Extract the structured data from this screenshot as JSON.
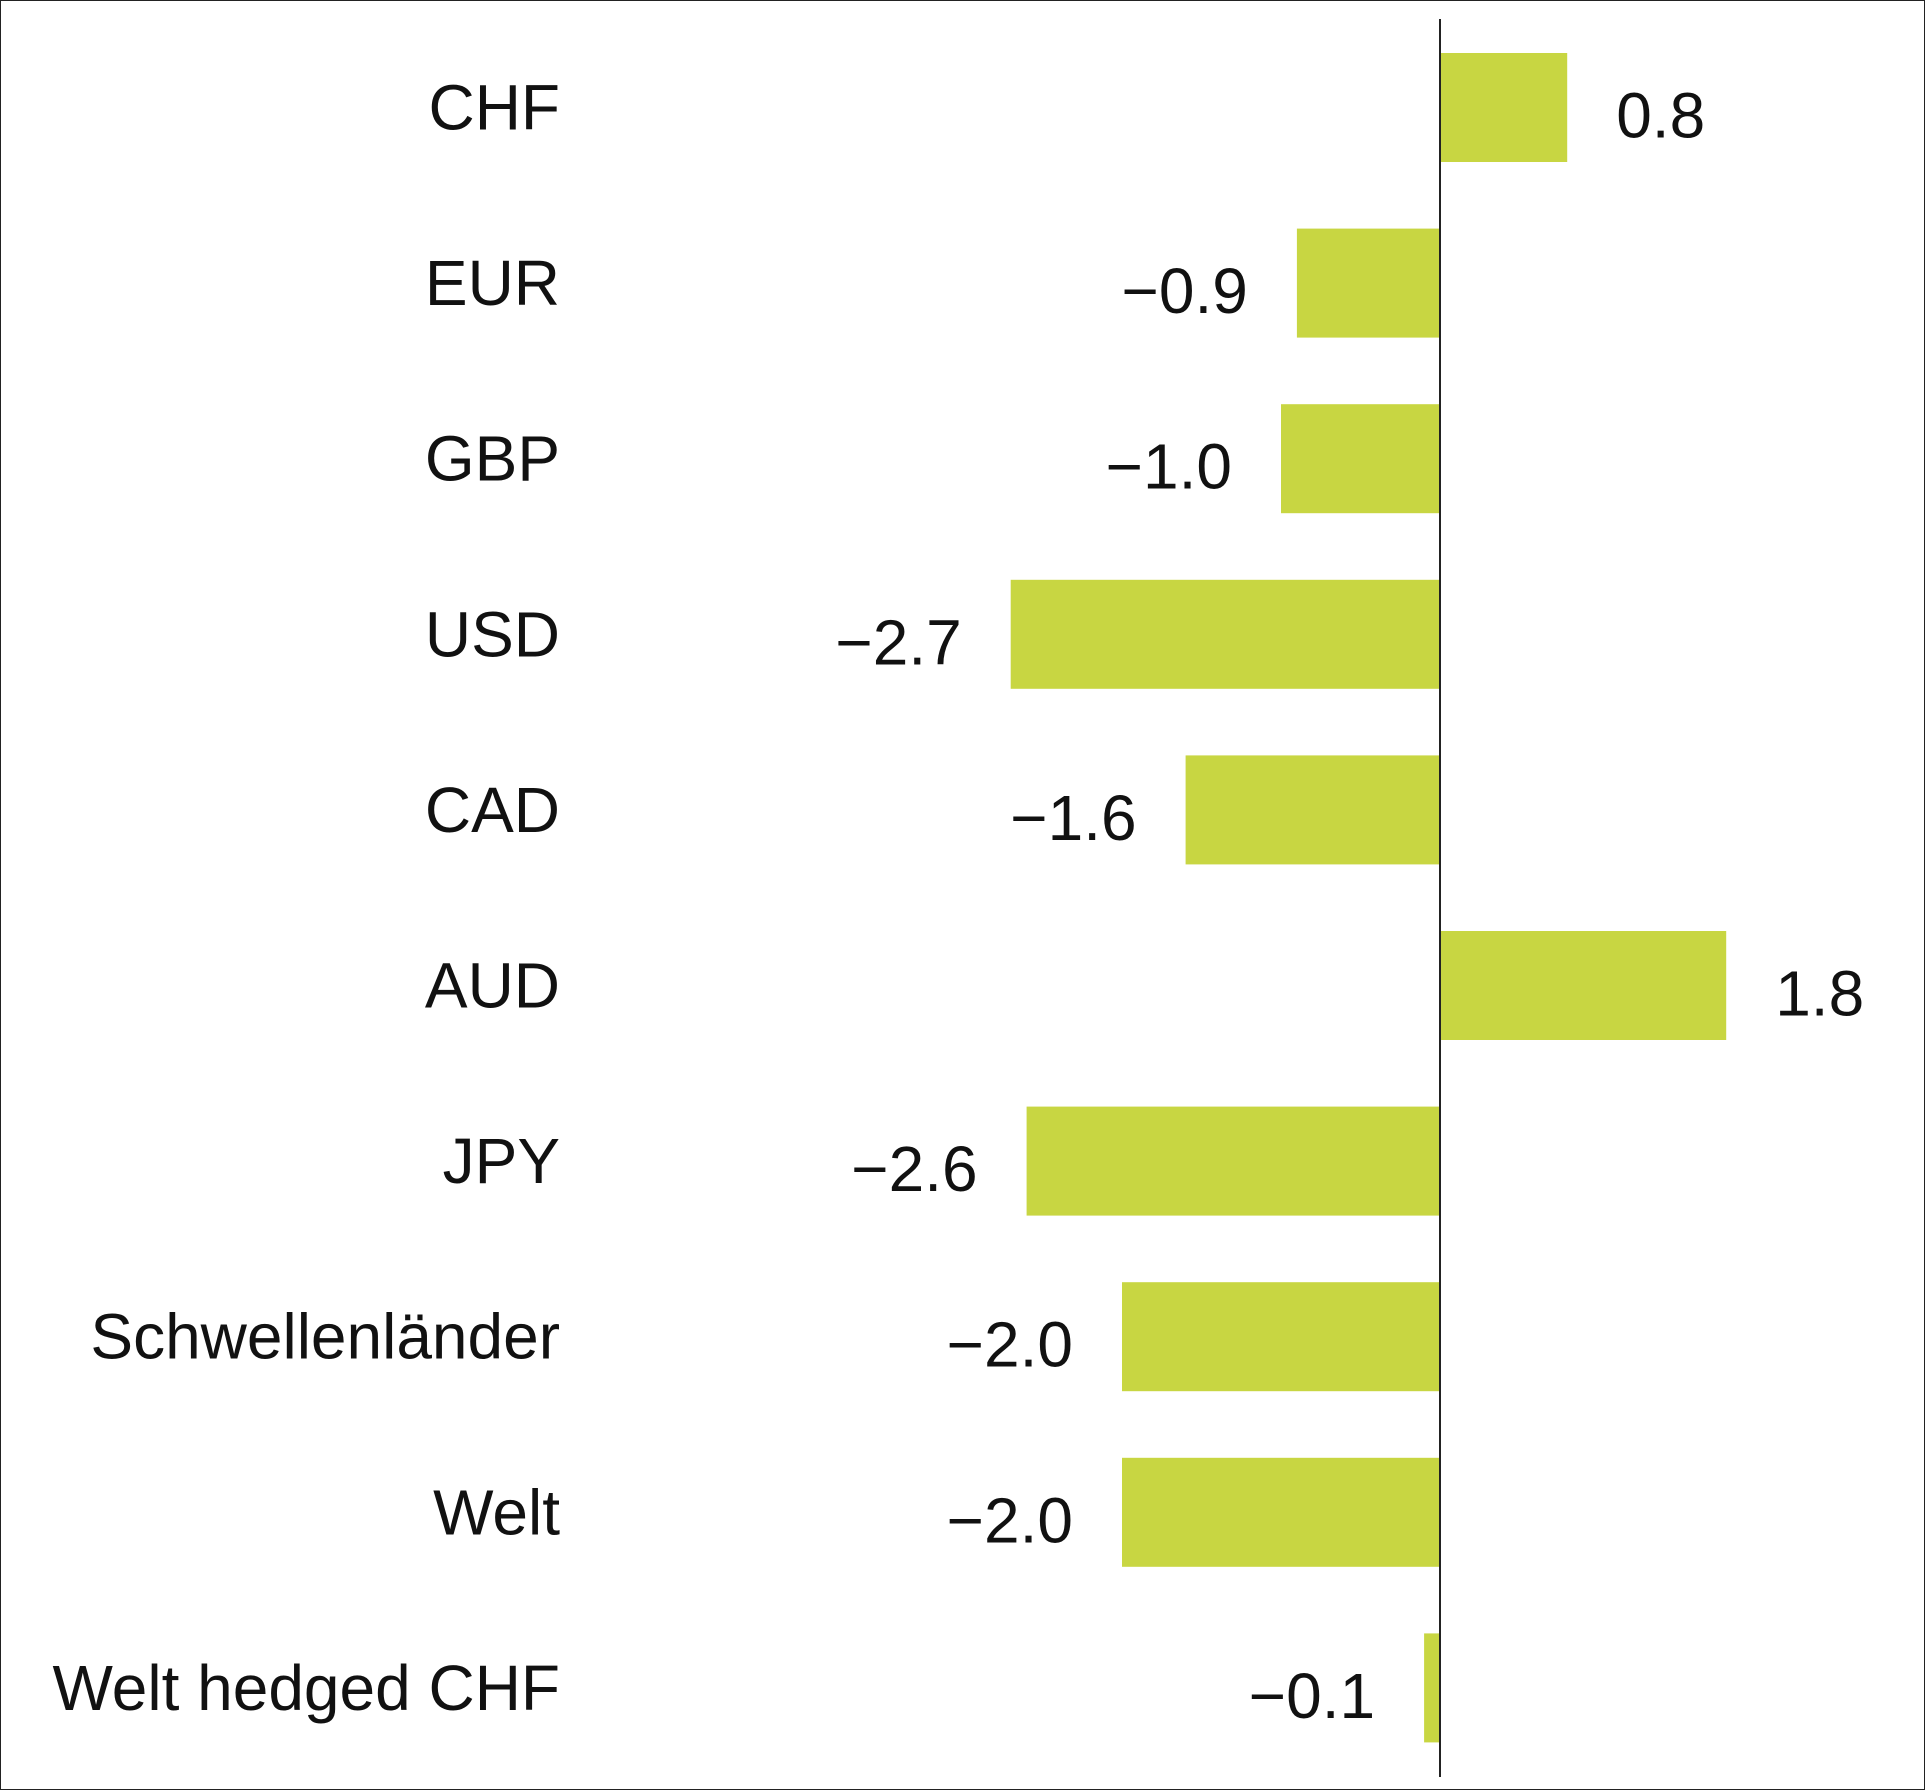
{
  "chart_data": {
    "type": "bar",
    "orientation": "horizontal",
    "categories": [
      "CHF",
      "EUR",
      "GBP",
      "USD",
      "CAD",
      "AUD",
      "JPY",
      "Schwellenländer",
      "Welt",
      "Welt hedged CHF"
    ],
    "values": [
      0.8,
      -0.9,
      -1.0,
      -2.7,
      -1.6,
      1.8,
      -2.6,
      -2.0,
      -2.0,
      -0.1
    ],
    "value_labels": [
      "0.8",
      "−0.9",
      "−1.0",
      "−2.7",
      "−1.6",
      "1.8",
      "−2.6",
      "−2.0",
      "−2.0",
      "−0.1"
    ],
    "title": "",
    "xlabel": "",
    "ylabel": "",
    "xlim": [
      -3.0,
      2.5
    ],
    "grid": false,
    "legend": "none",
    "bar_color": "#c8d642",
    "axis_color": "#222222"
  }
}
